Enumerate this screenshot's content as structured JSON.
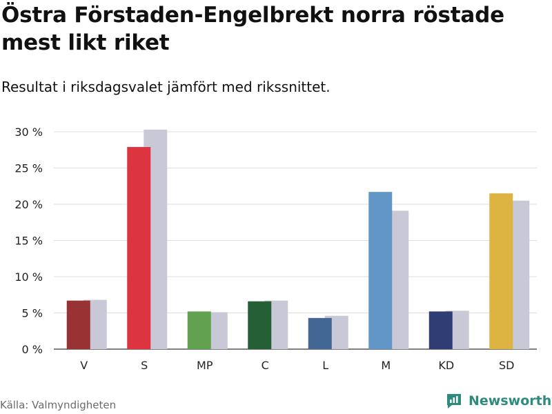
{
  "title": "Östra Förstaden-Engelbrekt norra röstade mest likt riket",
  "subtitle": "Resultat i riksdagsvalet jämfört med rikssnittet.",
  "source": "Källa: Valmyndigheten",
  "brand": "Newsworthy",
  "colors": {
    "comparison": "#c9c8d6",
    "brand": "#2f8a7e"
  },
  "chart_data": {
    "type": "bar",
    "categories": [
      "V",
      "S",
      "MP",
      "C",
      "L",
      "M",
      "KD",
      "SD"
    ],
    "series": [
      {
        "name": "Östra Förstaden-Engelbrekt norra",
        "values": [
          6.7,
          27.9,
          5.2,
          6.6,
          4.3,
          21.7,
          5.2,
          21.5
        ]
      },
      {
        "name": "Riket",
        "values": [
          6.8,
          30.3,
          5.1,
          6.7,
          4.6,
          19.1,
          5.3,
          20.5
        ]
      }
    ],
    "party_colors": [
      "#993333",
      "#dc3540",
      "#62a14f",
      "#245f36",
      "#426794",
      "#6196c7",
      "#303d74",
      "#ddb442"
    ],
    "ylim": [
      0,
      30
    ],
    "yticks": [
      0,
      5,
      10,
      15,
      20,
      25,
      30
    ],
    "ytick_labels": [
      "0 %",
      "5 %",
      "10 %",
      "15 %",
      "20 %",
      "25 %",
      "30 %"
    ],
    "xlabel": "",
    "ylabel": "",
    "grid": true
  }
}
